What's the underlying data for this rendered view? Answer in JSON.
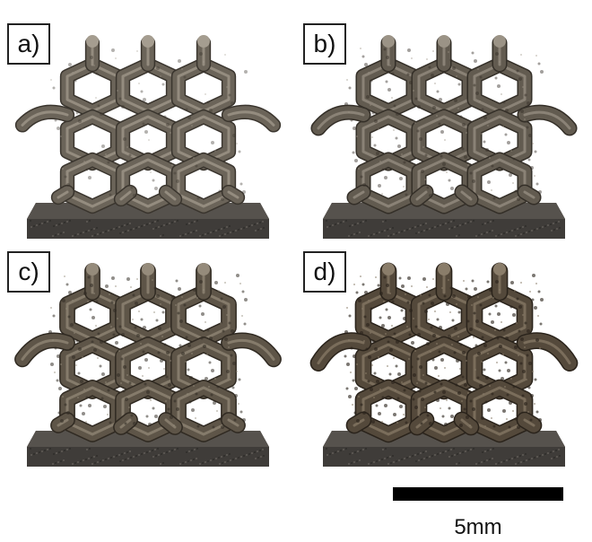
{
  "panels": [
    {
      "id": "a",
      "label": "a)",
      "strut_color": "#6b6459",
      "highlight": "#a59d90",
      "shadow": "#3a352e",
      "rough": 0.1
    },
    {
      "id": "b",
      "label": "b)",
      "strut_color": "#625b50",
      "highlight": "#9b9386",
      "shadow": "#342f28",
      "rough": 0.35
    },
    {
      "id": "c",
      "label": "c)",
      "strut_color": "#5e5548",
      "highlight": "#958b7b",
      "shadow": "#302a22",
      "rough": 0.6
    },
    {
      "id": "d",
      "label": "d)",
      "strut_color": "#54493b",
      "highlight": "#8a7d6a",
      "shadow": "#2a231b",
      "rough": 0.9
    }
  ],
  "base_color": "#3f3c39",
  "scale_bar": {
    "label": "5mm",
    "color": "#000000"
  }
}
